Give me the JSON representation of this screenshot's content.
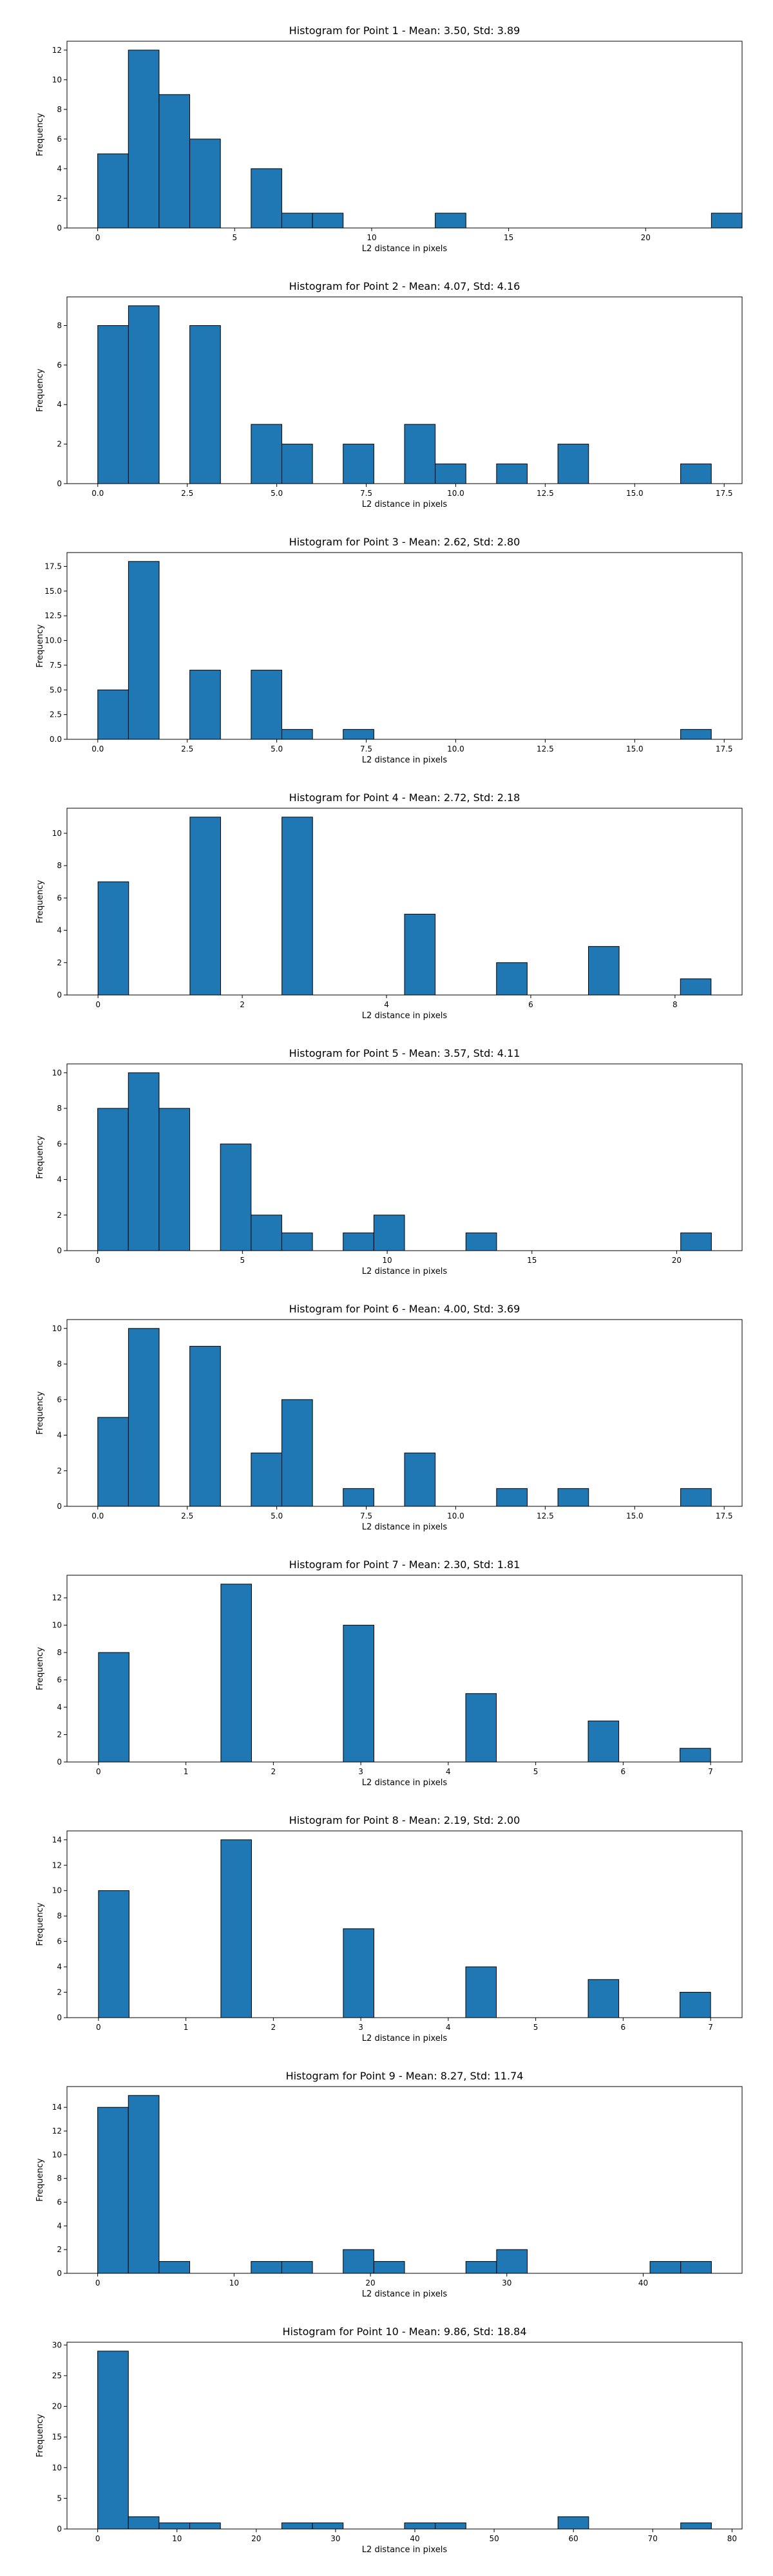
{
  "style": {
    "bar_color": "#1f77b4",
    "edge_color": "#000000"
  },
  "chart_data": [
    {
      "type": "bar",
      "title": "Histogram for Point 1 - Mean: 3.50, Std: 3.89",
      "xlabel": "L2 distance in pixels",
      "ylabel": "Frequency",
      "xlim": [
        -1.12,
        23.52
      ],
      "ylim": [
        0,
        12.6
      ],
      "xticks": [
        0,
        5,
        10,
        15,
        20
      ],
      "xtick_labels": [
        "0",
        "5",
        "10",
        "15",
        "20"
      ],
      "yticks": [
        0,
        2,
        4,
        6,
        8,
        10,
        12
      ],
      "ytick_labels": [
        "0",
        "2",
        "4",
        "6",
        "8",
        "10",
        "12"
      ],
      "bins": {
        "start": 0,
        "width": 1.12
      },
      "values": [
        5,
        12,
        9,
        6,
        0,
        4,
        1,
        1,
        0,
        0,
        0,
        1,
        0,
        0,
        0,
        0,
        0,
        0,
        0,
        0,
        1
      ]
    },
    {
      "type": "bar",
      "title": "Histogram for Point 2 - Mean: 4.07, Std: 4.16",
      "xlabel": "L2 distance in pixels",
      "ylabel": "Frequency",
      "xlim": [
        -0.86,
        18.0
      ],
      "ylim": [
        0,
        9.45
      ],
      "xticks": [
        0,
        2.5,
        5,
        7.5,
        10,
        12.5,
        15,
        17.5
      ],
      "xtick_labels": [
        "0.0",
        "2.5",
        "5.0",
        "7.5",
        "10.0",
        "12.5",
        "15.0",
        "17.5"
      ],
      "yticks": [
        0,
        2,
        4,
        6,
        8
      ],
      "ytick_labels": [
        "0",
        "2",
        "4",
        "6",
        "8"
      ],
      "bins": {
        "start": 0,
        "width": 0.857
      },
      "values": [
        8,
        9,
        0,
        8,
        0,
        3,
        2,
        0,
        2,
        0,
        3,
        1,
        0,
        1,
        0,
        2,
        0,
        0,
        0,
        1
      ]
    },
    {
      "type": "bar",
      "title": "Histogram for Point 3 - Mean: 2.62, Std: 2.80",
      "xlabel": "L2 distance in pixels",
      "ylabel": "Frequency",
      "xlim": [
        -0.86,
        18.0
      ],
      "ylim": [
        0,
        18.9
      ],
      "xticks": [
        0,
        2.5,
        5,
        7.5,
        10,
        12.5,
        15,
        17.5
      ],
      "xtick_labels": [
        "0.0",
        "2.5",
        "5.0",
        "7.5",
        "10.0",
        "12.5",
        "15.0",
        "17.5"
      ],
      "yticks": [
        0,
        2.5,
        5,
        7.5,
        10,
        12.5,
        15,
        17.5
      ],
      "ytick_labels": [
        "0.0",
        "2.5",
        "5.0",
        "7.5",
        "10.0",
        "12.5",
        "15.0",
        "17.5"
      ],
      "bins": {
        "start": 0,
        "width": 0.857
      },
      "values": [
        5,
        18,
        0,
        7,
        0,
        7,
        1,
        0,
        1,
        0,
        0,
        0,
        0,
        0,
        0,
        0,
        0,
        0,
        0,
        1
      ]
    },
    {
      "type": "bar",
      "title": "Histogram for Point 4 - Mean: 2.72, Std: 2.18",
      "xlabel": "L2 distance in pixels",
      "ylabel": "Frequency",
      "xlim": [
        -0.43,
        8.93
      ],
      "ylim": [
        0,
        11.55
      ],
      "xticks": [
        0,
        2,
        4,
        6,
        8
      ],
      "xtick_labels": [
        "0",
        "2",
        "4",
        "6",
        "8"
      ],
      "yticks": [
        0,
        2,
        4,
        6,
        8,
        10
      ],
      "ytick_labels": [
        "0",
        "2",
        "4",
        "6",
        "8",
        "10"
      ],
      "bins": {
        "start": 0,
        "width": 0.425
      },
      "values": [
        7,
        0,
        0,
        0,
        0,
        0,
        0,
        0,
        0,
        0,
        0,
        0,
        0,
        0,
        0,
        0,
        0,
        0,
        0,
        1
      ]
    },
    {
      "type": "bar",
      "title": "Histogram for Point 5 - Mean: 3.57, Std: 4.11",
      "xlabel": "L2 distance in pixels",
      "ylabel": "Frequency",
      "xlim": [
        -1.06,
        22.26
      ],
      "ylim": [
        0,
        10.5
      ],
      "xticks": [
        0,
        5,
        10,
        15,
        20
      ],
      "xtick_labels": [
        "0",
        "5",
        "10",
        "15",
        "20"
      ],
      "yticks": [
        0,
        2,
        4,
        6,
        8,
        10
      ],
      "ytick_labels": [
        "0",
        "2",
        "4",
        "6",
        "8",
        "10"
      ],
      "bins": {
        "start": 0,
        "width": 1.06
      },
      "values": [
        8,
        10,
        8,
        0,
        6,
        2,
        1,
        0,
        1,
        2,
        0,
        0,
        1,
        0,
        0,
        0,
        0,
        0,
        0,
        1
      ]
    },
    {
      "type": "bar",
      "title": "Histogram for Point 6 - Mean: 4.00, Std: 3.69",
      "xlabel": "L2 distance in pixels",
      "ylabel": "Frequency",
      "xlim": [
        -0.86,
        18.0
      ],
      "ylim": [
        0,
        10.5
      ],
      "xticks": [
        0,
        2.5,
        5,
        7.5,
        10,
        12.5,
        15,
        17.5
      ],
      "xtick_labels": [
        "0.0",
        "2.5",
        "5.0",
        "7.5",
        "10.0",
        "12.5",
        "15.0",
        "17.5"
      ],
      "yticks": [
        0,
        2,
        4,
        6,
        8,
        10
      ],
      "ytick_labels": [
        "0",
        "2",
        "4",
        "6",
        "8",
        "10"
      ],
      "bins": {
        "start": 0,
        "width": 0.857
      },
      "values": [
        5,
        10,
        0,
        9,
        0,
        3,
        6,
        0,
        1,
        0,
        3,
        0,
        0,
        1,
        0,
        1,
        0,
        0,
        0,
        1
      ]
    },
    {
      "type": "bar",
      "title": "Histogram for Point 7 - Mean: 2.30, Std: 1.81",
      "xlabel": "L2 distance in pixels",
      "ylabel": "Frequency",
      "xlim": [
        -0.36,
        7.36
      ],
      "ylim": [
        0,
        13.65
      ],
      "xticks": [
        0,
        1,
        2,
        3,
        4,
        5,
        6,
        7
      ],
      "xtick_labels": [
        "0",
        "1",
        "2",
        "3",
        "4",
        "5",
        "6",
        "7"
      ],
      "yticks": [
        0,
        2,
        4,
        6,
        8,
        10,
        12
      ],
      "ytick_labels": [
        "0",
        "2",
        "4",
        "6",
        "8",
        "10",
        "12"
      ],
      "bins": {
        "start": 0,
        "width": 0.35
      },
      "values": [
        8,
        0,
        0,
        0,
        13,
        0,
        0,
        0,
        10,
        0,
        0,
        0,
        5,
        0,
        0,
        0,
        3,
        0,
        0,
        1
      ]
    },
    {
      "type": "bar",
      "title": "Histogram for Point 8 - Mean: 2.19, Std: 2.00",
      "xlabel": "L2 distance in pixels",
      "ylabel": "Frequency",
      "xlim": [
        -0.36,
        7.36
      ],
      "ylim": [
        0,
        14.7
      ],
      "xticks": [
        0,
        1,
        2,
        3,
        4,
        5,
        6,
        7
      ],
      "xtick_labels": [
        "0",
        "1",
        "2",
        "3",
        "4",
        "5",
        "6",
        "7"
      ],
      "yticks": [
        0,
        2,
        4,
        6,
        8,
        10,
        12,
        14
      ],
      "ytick_labels": [
        "0",
        "2",
        "4",
        "6",
        "8",
        "10",
        "12",
        "14"
      ],
      "bins": {
        "start": 0,
        "width": 0.35
      },
      "values": [
        10,
        0,
        0,
        0,
        14,
        0,
        0,
        0,
        7,
        0,
        0,
        0,
        4,
        0,
        0,
        0,
        3,
        0,
        0,
        2
      ]
    },
    {
      "type": "bar",
      "title": "Histogram for Point 9 - Mean: 8.27, Std: 11.74",
      "xlabel": "L2 distance in pixels",
      "ylabel": "Frequency",
      "xlim": [
        -2.25,
        47.25
      ],
      "ylim": [
        0,
        15.75
      ],
      "xticks": [
        0,
        10,
        20,
        30,
        40
      ],
      "xtick_labels": [
        "0",
        "10",
        "20",
        "30",
        "40"
      ],
      "yticks": [
        0,
        2,
        4,
        6,
        8,
        10,
        12,
        14
      ],
      "ytick_labels": [
        "0",
        "2",
        "4",
        "6",
        "8",
        "10",
        "12",
        "14"
      ],
      "bins": {
        "start": 0,
        "width": 2.25
      },
      "values": [
        14,
        15,
        1,
        0,
        0,
        1,
        1,
        0,
        2,
        1,
        0,
        0,
        1,
        2,
        0,
        0,
        0,
        0,
        1,
        1
      ]
    },
    {
      "type": "bar",
      "title": "Histogram for Point 10 - Mean: 9.86, Std: 18.84",
      "xlabel": "L2 distance in pixels",
      "ylabel": "Frequency",
      "xlim": [
        -3.87,
        81.27
      ],
      "ylim": [
        0,
        30.45
      ],
      "xticks": [
        0,
        10,
        20,
        30,
        40,
        50,
        60,
        70,
        80
      ],
      "xtick_labels": [
        "0",
        "10",
        "20",
        "30",
        "40",
        "50",
        "60",
        "70",
        "80"
      ],
      "yticks": [
        0,
        5,
        10,
        15,
        20,
        25,
        30
      ],
      "ytick_labels": [
        "0",
        "5",
        "10",
        "15",
        "20",
        "25",
        "30"
      ],
      "bins": {
        "start": 0,
        "width": 3.87
      },
      "values": [
        29,
        2,
        1,
        1,
        0,
        0,
        1,
        1,
        0,
        0,
        1,
        1,
        0,
        0,
        0,
        2,
        0,
        0,
        0,
        1
      ]
    }
  ]
}
